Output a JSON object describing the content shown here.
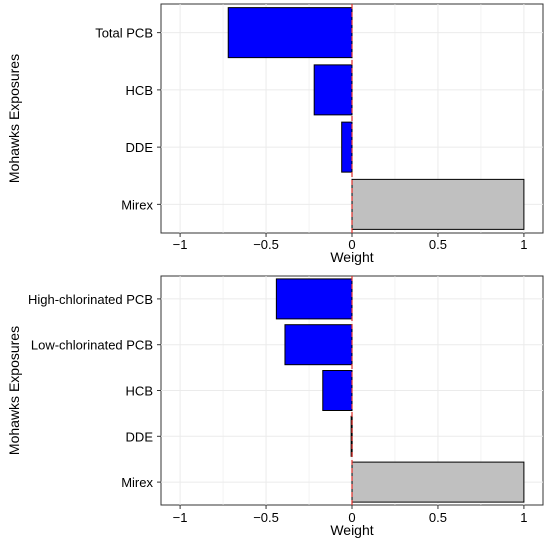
{
  "chart_data": [
    {
      "type": "bar",
      "orientation": "horizontal",
      "categories": [
        "Total PCB",
        "HCB",
        "DDE",
        "Mirex"
      ],
      "values": [
        -0.72,
        -0.22,
        -0.06,
        1.0
      ],
      "xlabel": "Weight",
      "ylabel": "Mohawks Exposures",
      "xlim": [
        -1,
        1
      ],
      "x_ticks": [
        -1,
        -0.5,
        0,
        0.5,
        1
      ],
      "x_tick_labels": [
        "−1",
        "−0.5",
        "0",
        "0.5",
        "1"
      ],
      "reference_line": 0,
      "grid": true,
      "colors": {
        "negative": "#0000ff",
        "positive": "#c0c0c0",
        "reference": "#e0302a"
      }
    },
    {
      "type": "bar",
      "orientation": "horizontal",
      "categories": [
        "High-chlorinated PCB",
        "Low-chlorinated PCB",
        "HCB",
        "DDE",
        "Mirex"
      ],
      "values": [
        -0.44,
        -0.39,
        -0.17,
        -0.005,
        1.0
      ],
      "xlabel": "Weight",
      "ylabel": "Mohawks Exposures",
      "xlim": [
        -1,
        1
      ],
      "x_ticks": [
        -1,
        -0.5,
        0,
        0.5,
        1
      ],
      "x_tick_labels": [
        "−1",
        "−0.5",
        "0",
        "0.5",
        "1"
      ],
      "reference_line": 0,
      "grid": true,
      "colors": {
        "negative": "#0000ff",
        "positive": "#c0c0c0",
        "reference": "#e0302a"
      }
    }
  ]
}
